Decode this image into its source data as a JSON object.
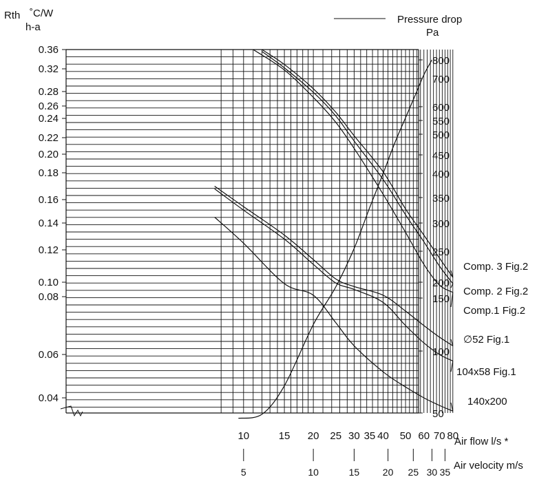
{
  "chart_data": {
    "type": "line",
    "title": "",
    "ylabel_left": "Rth",
    "ylabel_left_unit": "˚C/W",
    "ylabel_left_sub": "h-a",
    "ylabel_right": "Pressure drop",
    "ylabel_right_unit": "Pa",
    "xlabel_flow": "Air flow l/s  *",
    "xlabel_velocity": "Air velocity m/s",
    "x_scale": "log",
    "xlim": [
      7.5,
      80
    ],
    "ylim_left": [
      0.032,
      0.36
    ],
    "ylim_right": [
      0,
      800
    ],
    "grid": true,
    "x_ticks": [
      10,
      15,
      20,
      25,
      30,
      35,
      40,
      50,
      60,
      70,
      80
    ],
    "x_tick_labels": [
      "10",
      "15",
      "20",
      "25",
      "30",
      "35",
      "40",
      "50",
      "60",
      "70",
      "80"
    ],
    "velocity_ticks": [
      {
        "flow": 10,
        "label": "5"
      },
      {
        "flow": 20,
        "label": "10"
      },
      {
        "flow": 30,
        "label": "15"
      },
      {
        "flow": 42,
        "label": "20"
      },
      {
        "flow": 54,
        "label": "25"
      },
      {
        "flow": 65,
        "label": "30"
      },
      {
        "flow": 74,
        "label": "35"
      }
    ],
    "y_left_ticks": [
      0.04,
      0.06,
      0.08,
      0.1,
      0.12,
      0.14,
      0.16,
      0.18,
      0.2,
      0.22,
      0.24,
      0.26,
      0.28,
      0.32,
      0.36
    ],
    "y_left_tick_labels": [
      "0.04",
      "0.06",
      "0.08",
      "0.10",
      "0.12",
      "0.14",
      "0.16",
      "0.18",
      "0.20",
      "0.22",
      "0.24",
      "0.26",
      "0.28",
      "0.32",
      "0.36"
    ],
    "y_right_ticks": [
      50,
      100,
      150,
      200,
      250,
      300,
      350,
      400,
      450,
      500,
      550,
      600,
      700,
      800
    ],
    "y_right_tick_labels": [
      "50",
      "100",
      "150",
      "200",
      "250",
      "300",
      "350",
      "400",
      "450",
      "500",
      "550",
      "600",
      "700",
      "800"
    ],
    "legend": {
      "placement": "top-right",
      "label": "Pressure drop"
    },
    "series": [
      {
        "name": "Comp. 3  Fig.2",
        "axis": "left",
        "x": [
          12,
          15,
          20,
          25,
          30,
          40,
          50,
          60,
          70,
          80
        ],
        "y": [
          0.36,
          0.329,
          0.285,
          0.25,
          0.222,
          0.181,
          0.152,
          0.131,
          0.115,
          0.103
        ]
      },
      {
        "name": "Comp. 2  Fig.2",
        "axis": "left",
        "x": [
          12,
          15,
          20,
          25,
          30,
          40,
          50,
          60,
          70,
          80
        ],
        "y": [
          0.356,
          0.322,
          0.279,
          0.244,
          0.216,
          0.175,
          0.147,
          0.126,
          0.11,
          0.098
        ]
      },
      {
        "name": "Comp.1  Fig.2",
        "axis": "left",
        "x": [
          11,
          15,
          20,
          25,
          30,
          40,
          50,
          60,
          70,
          80
        ],
        "y": [
          0.36,
          0.318,
          0.272,
          0.236,
          0.207,
          0.164,
          0.133,
          0.111,
          0.096,
          0.086
        ]
      },
      {
        "name": "∅52  Fig.1",
        "axis": "left",
        "x": [
          7.5,
          10,
          15,
          20,
          25,
          30,
          40,
          50,
          60,
          70,
          80
        ],
        "y": [
          0.17,
          0.154,
          0.131,
          0.114,
          0.102,
          0.094,
          0.082,
          0.075,
          0.07,
          0.066,
          0.063
        ]
      },
      {
        "name": "104x58  Fig.1",
        "axis": "left",
        "x": [
          7.5,
          10,
          15,
          20,
          25,
          30,
          40,
          50,
          60,
          70,
          80
        ],
        "y": [
          0.168,
          0.151,
          0.128,
          0.111,
          0.099,
          0.09,
          0.078,
          0.07,
          0.064,
          0.06,
          0.057
        ]
      },
      {
        "name": "140x200",
        "axis": "left",
        "x": [
          7.5,
          10,
          15,
          20,
          25,
          30,
          40,
          50,
          60,
          70,
          80
        ],
        "y": [
          0.145,
          0.125,
          0.098,
          0.082,
          0.071,
          0.063,
          0.052,
          0.045,
          0.04,
          0.036,
          0.033
        ]
      },
      {
        "name": "Pressure drop",
        "axis": "right",
        "x": [
          9.5,
          12,
          15,
          20,
          25,
          30,
          35,
          40,
          45,
          50,
          55,
          60,
          65
        ],
        "y": [
          18,
          42,
          72,
          125,
          185,
          255,
          330,
          400,
          480,
          560,
          640,
          720,
          800
        ]
      }
    ]
  }
}
